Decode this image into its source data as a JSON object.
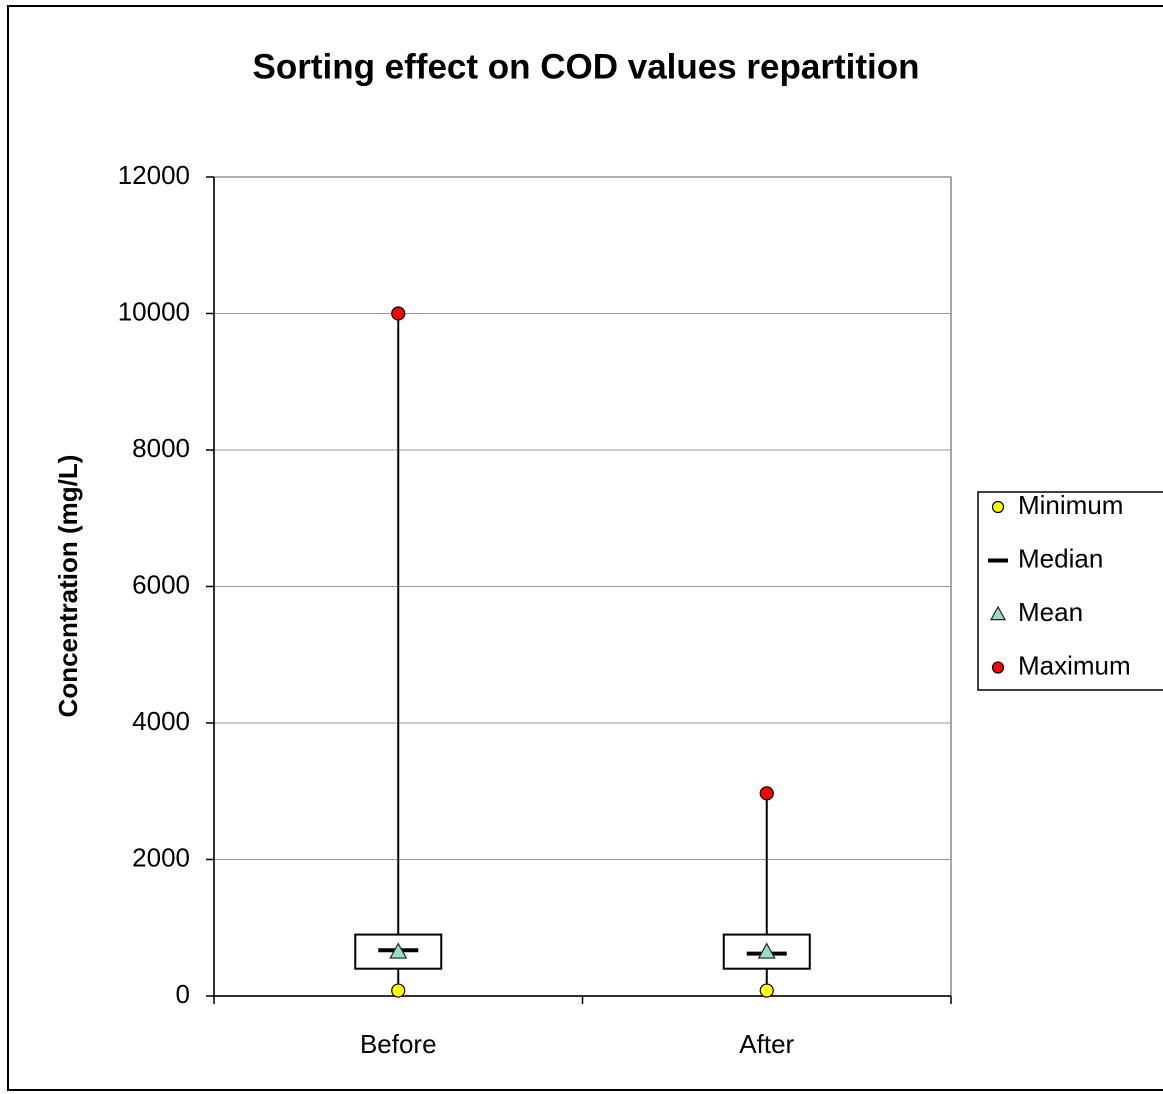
{
  "chart_data": {
    "type": "box",
    "title": "Sorting effect on COD values repartition",
    "y_label": "Concentration (mg/L)",
    "categories": [
      "Before",
      "After"
    ],
    "series": [
      {
        "name": "Minimum",
        "color": "#ffff00",
        "values": [
          80,
          80
        ]
      },
      {
        "name": "Median",
        "color": "#000000",
        "values": [
          670,
          620
        ]
      },
      {
        "name": "Mean",
        "color": "#99ddbb",
        "values": [
          650,
          650
        ]
      },
      {
        "name": "Maximum",
        "color": "#ff0000",
        "values": [
          10000,
          2970
        ]
      }
    ],
    "q1": [
      400,
      400
    ],
    "q3": [
      900,
      900
    ],
    "ylim": [
      0,
      12000
    ],
    "yticks": [
      0,
      2000,
      4000,
      6000,
      8000,
      10000,
      12000
    ],
    "grid": true,
    "legend": "right"
  }
}
